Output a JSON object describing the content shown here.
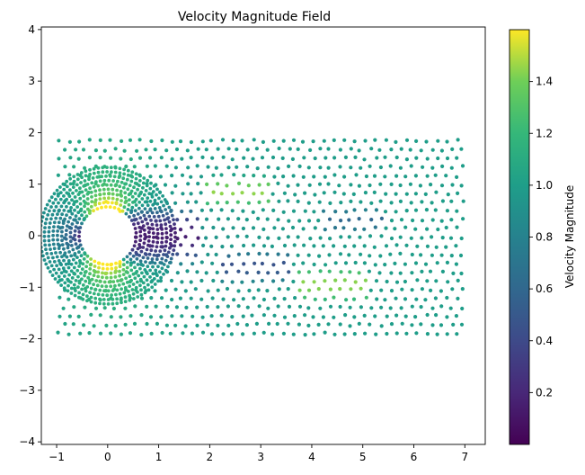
{
  "chart_data": {
    "type": "scatter",
    "title": "Velocity Magnitude Field",
    "xlabel": "",
    "ylabel": "",
    "xlim": [
      -1.3,
      7.4
    ],
    "ylim": [
      -4.05,
      4.05
    ],
    "x_ticks": [
      -1,
      0,
      1,
      2,
      3,
      4,
      5,
      6,
      7
    ],
    "y_ticks": [
      -4,
      -3,
      -2,
      -1,
      0,
      1,
      2,
      3,
      4
    ],
    "x_tick_labels": [
      "−1",
      "0",
      "1",
      "2",
      "3",
      "4",
      "5",
      "6",
      "7"
    ],
    "y_tick_labels": [
      "−4",
      "−3",
      "−2",
      "−1",
      "0",
      "1",
      "2",
      "3",
      "4"
    ],
    "grid": false,
    "colormap": "viridis",
    "colorbar": {
      "label": "Velocity Magnitude",
      "range": [
        0.0,
        1.6
      ],
      "ticks": [
        0.2,
        0.4,
        0.6,
        0.8,
        1.0,
        1.2,
        1.4
      ],
      "tick_labels": [
        "0.2",
        "0.4",
        "0.6",
        "0.8",
        "1.0",
        "1.2",
        "1.4"
      ]
    },
    "cylinder": {
      "center": [
        0,
        0
      ],
      "radius": 0.5
    },
    "domain": {
      "x": [
        -1,
        7
      ],
      "y": [
        -2,
        2
      ]
    },
    "point_grid": {
      "spacing_x": 0.2,
      "spacing_y": 0.17,
      "far_field_speed": 1.0
    },
    "wake_bands": [
      {
        "x_start": 0.3,
        "x_end": 1.8,
        "y": 0.0,
        "half_width": 0.6,
        "value": 0.15
      },
      {
        "x_start": 1.9,
        "x_end": 3.2,
        "y": 0.85,
        "half_width": 0.35,
        "value": 1.45
      },
      {
        "x_start": 2.2,
        "x_end": 3.6,
        "y": -0.6,
        "half_width": 0.35,
        "value": 0.45
      },
      {
        "x_start": 3.7,
        "x_end": 5.1,
        "y": -0.95,
        "half_width": 0.4,
        "value": 1.45
      },
      {
        "x_start": 4.2,
        "x_end": 5.4,
        "y": 0.3,
        "half_width": 0.3,
        "value": 0.6
      }
    ]
  }
}
